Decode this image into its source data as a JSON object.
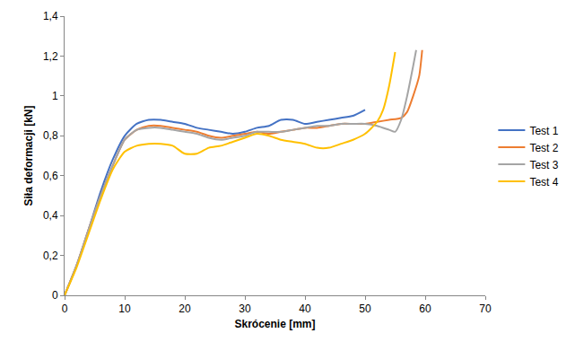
{
  "chart_data": {
    "type": "line",
    "x_label": "Skrócenie [mm]",
    "y_label": "Siła deformacji [kN]",
    "xlim": [
      0,
      70
    ],
    "xticks": [
      0,
      10,
      20,
      30,
      40,
      50,
      60,
      70
    ],
    "ylim": [
      0,
      1.4
    ],
    "yticks": [
      0,
      {
        "value": 0.2,
        "label": "0,2"
      },
      {
        "value": 0.4,
        "label": "0,4"
      },
      {
        "value": 0.6,
        "label": "0,6"
      },
      {
        "value": 0.8,
        "label": "0,8"
      },
      1,
      {
        "value": 1.2,
        "label": "1,2"
      },
      {
        "value": 1.4,
        "label": "1,4"
      }
    ],
    "grid": false,
    "legend": "right",
    "series": [
      {
        "name": "Test 1",
        "color": "#4472c4",
        "x": [
          0,
          2,
          4,
          6,
          8,
          10,
          12,
          14,
          16,
          18,
          20,
          22,
          24,
          26,
          28,
          30,
          32,
          34,
          36,
          38,
          40,
          42,
          44,
          46,
          48,
          50
        ],
        "values": [
          0,
          0.15,
          0.33,
          0.52,
          0.68,
          0.8,
          0.86,
          0.88,
          0.88,
          0.87,
          0.86,
          0.84,
          0.83,
          0.82,
          0.81,
          0.82,
          0.84,
          0.85,
          0.88,
          0.88,
          0.86,
          0.87,
          0.88,
          0.89,
          0.9,
          0.93
        ]
      },
      {
        "name": "Test 2",
        "color": "#ed7d31",
        "x": [
          0,
          2,
          4,
          6,
          8,
          10,
          12,
          14,
          16,
          18,
          20,
          22,
          24,
          26,
          28,
          30,
          32,
          34,
          36,
          38,
          40,
          42,
          44,
          46,
          48,
          50,
          52,
          54,
          56,
          57,
          58,
          59,
          59.5
        ],
        "values": [
          0,
          0.15,
          0.33,
          0.5,
          0.65,
          0.78,
          0.83,
          0.85,
          0.85,
          0.84,
          0.83,
          0.82,
          0.8,
          0.79,
          0.8,
          0.81,
          0.82,
          0.81,
          0.82,
          0.83,
          0.84,
          0.84,
          0.85,
          0.86,
          0.86,
          0.86,
          0.87,
          0.88,
          0.89,
          0.92,
          1.0,
          1.1,
          1.23
        ]
      },
      {
        "name": "Test 3",
        "color": "#a5a5a5",
        "x": [
          0,
          2,
          4,
          6,
          8,
          10,
          12,
          14,
          16,
          18,
          20,
          22,
          24,
          26,
          28,
          30,
          32,
          34,
          36,
          38,
          40,
          42,
          44,
          46,
          48,
          50,
          52,
          54,
          55,
          56,
          57,
          58,
          58.5
        ],
        "values": [
          0,
          0.15,
          0.33,
          0.5,
          0.65,
          0.78,
          0.83,
          0.84,
          0.84,
          0.83,
          0.82,
          0.81,
          0.79,
          0.78,
          0.79,
          0.8,
          0.82,
          0.82,
          0.82,
          0.83,
          0.84,
          0.85,
          0.85,
          0.86,
          0.86,
          0.86,
          0.85,
          0.83,
          0.82,
          0.88,
          1.0,
          1.15,
          1.23
        ]
      },
      {
        "name": "Test 4",
        "color": "#ffc000",
        "x": [
          0,
          2,
          4,
          6,
          8,
          10,
          12,
          14,
          16,
          18,
          20,
          22,
          24,
          26,
          28,
          30,
          32,
          34,
          36,
          38,
          40,
          42,
          44,
          46,
          48,
          50,
          52,
          53,
          54,
          55
        ],
        "values": [
          0,
          0.14,
          0.31,
          0.48,
          0.63,
          0.72,
          0.75,
          0.76,
          0.76,
          0.75,
          0.71,
          0.71,
          0.74,
          0.75,
          0.77,
          0.79,
          0.81,
          0.8,
          0.78,
          0.77,
          0.76,
          0.74,
          0.74,
          0.76,
          0.78,
          0.81,
          0.87,
          0.93,
          1.05,
          1.22
        ]
      }
    ]
  }
}
